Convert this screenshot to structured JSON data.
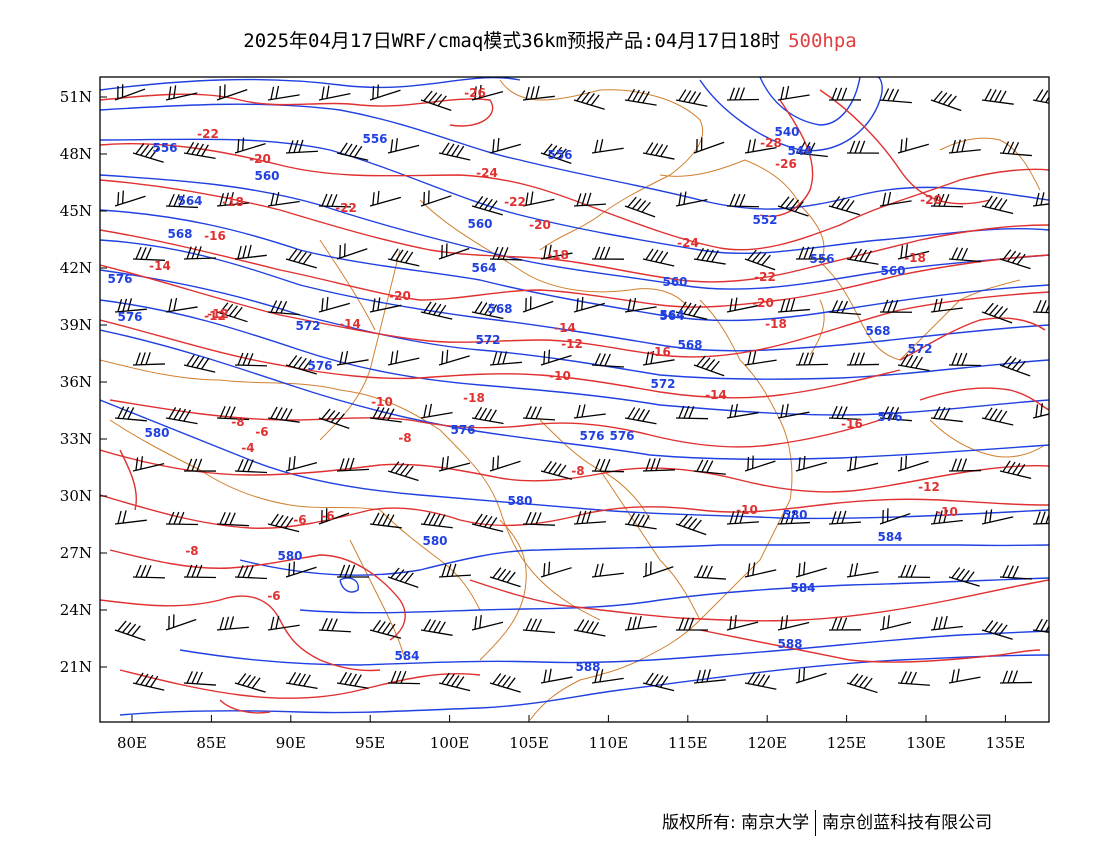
{
  "title": {
    "main": "2025年04月17日WRF/cmaq模式36km预报产品:04月17日18时",
    "level": "500hpa"
  },
  "footer": {
    "left": "版权所有: 南京大学",
    "right": "南京创蓝科技有限公司"
  },
  "axes": {
    "lat_ticks": [
      "51N",
      "48N",
      "45N",
      "42N",
      "39N",
      "36N",
      "33N",
      "30N",
      "27N",
      "24N",
      "21N"
    ],
    "lon_ticks": [
      "80E",
      "85E",
      "90E",
      "95E",
      "100E",
      "105E",
      "110E",
      "115E",
      "120E",
      "125E",
      "130E",
      "135E"
    ]
  },
  "colors": {
    "height": "#2040e0",
    "temperature": "#e03030",
    "border": "#d08030",
    "wind": "#000000"
  },
  "height_labels": [
    "576",
    "556",
    "556",
    "556",
    "560",
    "564",
    "568",
    "576",
    "572",
    "576",
    "560",
    "564",
    "568",
    "572",
    "576",
    "580",
    "580",
    "576",
    "580",
    "584",
    "560",
    "564",
    "568",
    "572",
    "576",
    "580",
    "584",
    "588",
    "540",
    "544",
    "552",
    "556",
    "560",
    "564",
    "568",
    "572",
    "576",
    "580",
    "584",
    "588"
  ],
  "temp_labels": [
    "-22",
    "-20",
    "-18",
    "-16",
    "-14",
    "-12",
    "-10",
    "-8",
    "-6",
    "-4",
    "-26",
    "-24",
    "-22",
    "-20",
    "-18",
    "-20",
    "-22",
    "-14",
    "-12",
    "-10",
    "-8",
    "-6",
    "-18",
    "-16",
    "-14",
    "-12",
    "-10",
    "-8",
    "-6",
    "-28",
    "-26",
    "-24",
    "-22",
    "-20",
    "-18",
    "-16",
    "-14",
    "-12",
    "-10",
    "-8",
    "-6",
    "-20",
    "-18"
  ]
}
